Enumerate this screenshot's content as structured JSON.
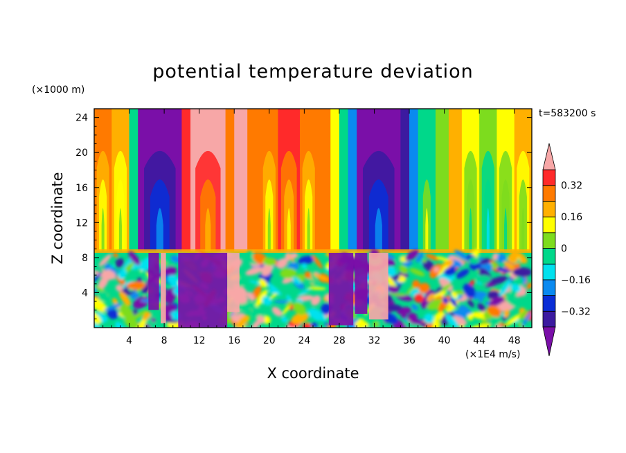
{
  "chart_data": {
    "type": "heatmap",
    "title": "potential temperature deviation",
    "xlabel": "X coordinate",
    "ylabel": "Z coordinate",
    "x_unit": "(×1E4 m/s)",
    "y_unit": "(×1000 m)",
    "time_label": "t=583200 s",
    "xlim": [
      0,
      50
    ],
    "ylim": [
      0,
      25
    ],
    "x_ticks": [
      4,
      8,
      12,
      16,
      20,
      24,
      28,
      32,
      36,
      40,
      44,
      48
    ],
    "y_ticks": [
      4,
      8,
      12,
      16,
      20,
      24
    ],
    "colorbar": {
      "levels": [
        -0.4,
        -0.32,
        -0.24,
        -0.16,
        -0.08,
        0,
        0.08,
        0.16,
        0.24,
        0.32,
        0.4
      ],
      "tick_labels": [
        "0.32",
        "0.16",
        "0",
        "−0.16",
        "−0.32"
      ],
      "tick_values": [
        0.32,
        0.16,
        0,
        -0.16,
        -0.32
      ],
      "colors": [
        "#7a0fa8",
        "#3c1aa0",
        "#0a2dd6",
        "#0a8af0",
        "#00e1ee",
        "#00d88a",
        "#7ddc1e",
        "#ffff00",
        "#ffb000",
        "#ff7a00",
        "#ff2a2a",
        "#f7a7a7"
      ],
      "extend": "both"
    },
    "inversion_height": 8.7,
    "upper_layer_columns": [
      {
        "x0": 0.0,
        "x1": 2.0,
        "value": 0.26
      },
      {
        "x0": 2.0,
        "x1": 4.0,
        "value": 0.18
      },
      {
        "x0": 4.0,
        "x1": 5.0,
        "value": -0.04
      },
      {
        "x0": 5.0,
        "x1": 10.0,
        "value": -0.42
      },
      {
        "x0": 10.0,
        "x1": 11.0,
        "value": 0.34
      },
      {
        "x0": 11.0,
        "x1": 15.0,
        "value": 0.42
      },
      {
        "x0": 15.0,
        "x1": 16.0,
        "value": 0.3
      },
      {
        "x0": 16.0,
        "x1": 17.5,
        "value": 0.42
      },
      {
        "x0": 17.5,
        "x1": 19.0,
        "value": 0.3
      },
      {
        "x0": 19.0,
        "x1": 21.0,
        "value": 0.26
      },
      {
        "x0": 21.0,
        "x1": 23.5,
        "value": 0.34
      },
      {
        "x0": 23.5,
        "x1": 25.5,
        "value": 0.26
      },
      {
        "x0": 25.5,
        "x1": 27.0,
        "value": 0.3
      },
      {
        "x0": 27.0,
        "x1": 28.0,
        "value": 0.14
      },
      {
        "x0": 28.0,
        "x1": 29.0,
        "value": -0.02
      },
      {
        "x0": 29.0,
        "x1": 30.0,
        "value": -0.2
      },
      {
        "x0": 30.0,
        "x1": 35.0,
        "value": -0.42
      },
      {
        "x0": 35.0,
        "x1": 36.0,
        "value": -0.34
      },
      {
        "x0": 36.0,
        "x1": 37.0,
        "value": -0.2
      },
      {
        "x0": 37.0,
        "x1": 39.0,
        "value": -0.06
      },
      {
        "x0": 39.0,
        "x1": 40.5,
        "value": 0.06
      },
      {
        "x0": 40.5,
        "x1": 42.0,
        "value": 0.18
      },
      {
        "x0": 42.0,
        "x1": 44.0,
        "value": 0.1
      },
      {
        "x0": 44.0,
        "x1": 46.0,
        "value": 0.02
      },
      {
        "x0": 46.0,
        "x1": 48.0,
        "value": 0.12
      },
      {
        "x0": 48.0,
        "x1": 50.0,
        "value": 0.16
      }
    ]
  }
}
